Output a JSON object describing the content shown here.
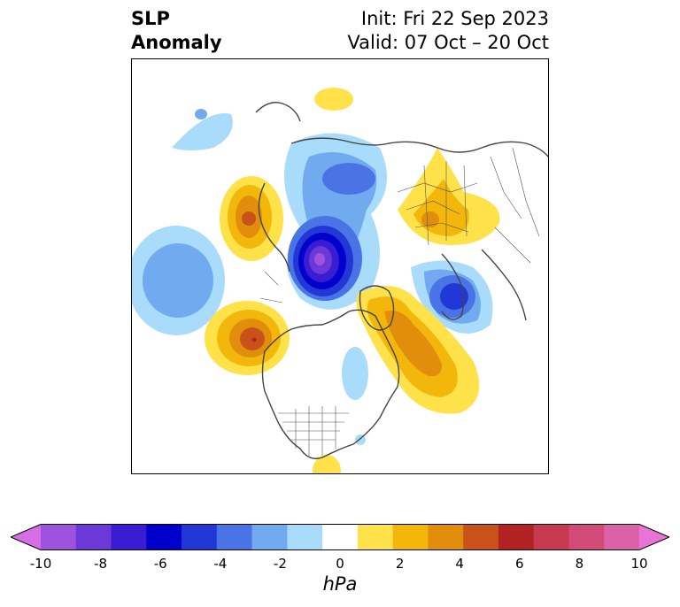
{
  "title": {
    "variable_line1": "SLP",
    "variable_line2": "Anomaly",
    "init": "Init: Fri 22 Sep 2023",
    "valid": "Valid: 07 Oct – 20 Oct"
  },
  "colorbar": {
    "units": "hPa",
    "min": -10,
    "max": 10,
    "ticks": [
      "-10",
      "-8",
      "-6",
      "-4",
      "-2",
      "0",
      "2",
      "4",
      "6",
      "8",
      "10"
    ],
    "extend": "both",
    "colors": [
      "#d66ee6",
      "#9e52de",
      "#6a39d8",
      "#3a1dd2",
      "#0000cc",
      "#2238d6",
      "#4a74e6",
      "#72aaf0",
      "#a9dcfa",
      "#ffffff",
      "#ffe24a",
      "#f3b70c",
      "#e08e0c",
      "#c9521a",
      "#b22222",
      "#c6394f",
      "#d24b78",
      "#dc62a8",
      "#e874d8"
    ]
  },
  "map": {
    "projection": "polar-stereographic",
    "region": "Northern Hemisphere",
    "field": "sea level pressure anomaly",
    "anomalies": [
      {
        "name": "arctic-low",
        "sign": "negative",
        "peak_hpa": -10
      },
      {
        "name": "west-pacific-low",
        "sign": "negative",
        "peak_hpa": -4
      },
      {
        "name": "east-pacific-high",
        "sign": "positive",
        "peak_hpa": 5
      },
      {
        "name": "northwest-atlantic-high",
        "sign": "positive",
        "peak_hpa": 4
      },
      {
        "name": "northeast-pacific-high",
        "sign": "positive",
        "peak_hpa": 4
      },
      {
        "name": "scandinavia-low",
        "sign": "negative",
        "peak_hpa": -6
      },
      {
        "name": "siberia-high",
        "sign": "positive",
        "peak_hpa": 3
      },
      {
        "name": "north-pacific-low",
        "sign": "negative",
        "peak_hpa": -3
      }
    ]
  }
}
